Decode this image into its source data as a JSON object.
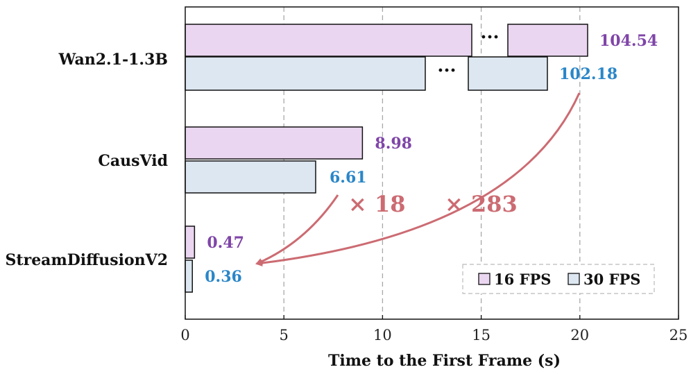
{
  "chart_data": {
    "type": "bar",
    "orientation": "horizontal",
    "categories": [
      "Wan2.1-1.3B",
      "CausVid",
      "StreamDiffusionV2"
    ],
    "series": [
      {
        "name": "16 FPS",
        "values": [
          104.54,
          8.98,
          0.47
        ],
        "value_labels": [
          "104.54",
          "8.98",
          "0.47"
        ],
        "color": "#ead6f0",
        "label_color": "#7f45a8"
      },
      {
        "name": "30 FPS",
        "values": [
          102.18,
          6.61,
          0.36
        ],
        "value_labels": [
          "102.18",
          "6.61",
          "0.36"
        ],
        "color": "#dce7f1",
        "label_color": "#2a86c8"
      }
    ],
    "xlabel": "Time to the First Frame (s)",
    "ylabel": "",
    "xlim": [
      0,
      25
    ],
    "xticks": [
      "0",
      "5",
      "10",
      "15",
      "20",
      "25"
    ],
    "grid": "vertical dashed",
    "axis_break": {
      "category": "Wan2.1-1.3B",
      "symbol": "···"
    },
    "legend_position": "bottom-right",
    "annotations": [
      {
        "text": "× 18",
        "from": "CausVid 30 FPS",
        "to": "StreamDiffusionV2"
      },
      {
        "text": "× 283",
        "from": "Wan2.1-1.3B 30 FPS",
        "to": "StreamDiffusionV2"
      }
    ],
    "annotation_color": "#cc6b72"
  }
}
